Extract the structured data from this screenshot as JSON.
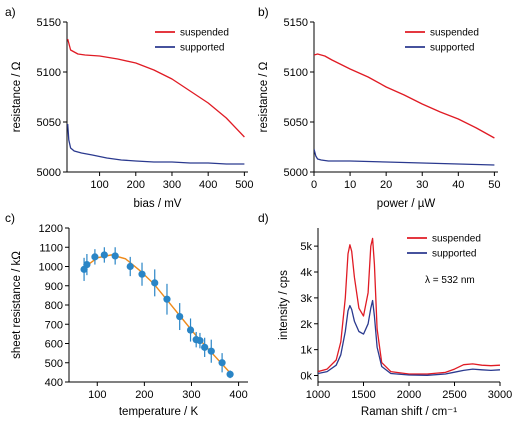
{
  "colors": {
    "suspended": "#e01b24",
    "supported": "#2b3a8f",
    "marker": "#2a85c6",
    "fit": "#ee8a1a"
  },
  "chart_data": [
    {
      "panel": "a)",
      "type": "line",
      "xlabel": "bias / mV",
      "ylabel": "resistance / Ω",
      "xlim": [
        10,
        510
      ],
      "ylim": [
        5000,
        5150
      ],
      "xticks": [
        100,
        200,
        300,
        400,
        500
      ],
      "xtick_labels": [
        "100",
        "200",
        "300",
        "400",
        "500"
      ],
      "yticks": [
        5000,
        5050,
        5100,
        5150
      ],
      "ytick_labels": [
        "5000",
        "5050",
        "5100",
        "5150"
      ],
      "legend": "top-right",
      "series": [
        {
          "name": "suspended",
          "color": "#e01b24",
          "x": [
            12,
            20,
            40,
            60,
            100,
            150,
            200,
            250,
            300,
            350,
            400,
            450,
            500
          ],
          "y": [
            5133,
            5122,
            5118,
            5117,
            5116,
            5113,
            5109,
            5102,
            5093,
            5081,
            5069,
            5054,
            5035
          ]
        },
        {
          "name": "supported",
          "color": "#2b3a8f",
          "x": [
            12,
            15,
            20,
            30,
            50,
            80,
            120,
            160,
            200,
            250,
            300,
            350,
            400,
            450,
            500
          ],
          "y": [
            5048,
            5032,
            5024,
            5021,
            5019,
            5017,
            5014,
            5012,
            5011,
            5010,
            5010,
            5009,
            5009,
            5008,
            5008
          ]
        }
      ]
    },
    {
      "panel": "b)",
      "type": "line",
      "xlabel": "power /  µW",
      "ylabel": "resistance / Ω",
      "xlim": [
        0,
        51
      ],
      "ylim": [
        5000,
        5150
      ],
      "xticks": [
        0,
        10,
        20,
        30,
        40,
        50
      ],
      "xtick_labels": [
        "0",
        "10",
        "20",
        "30",
        "40",
        "50"
      ],
      "yticks": [
        5000,
        5050,
        5100,
        5150
      ],
      "ytick_labels": [
        "5000",
        "5050",
        "5100",
        "5150"
      ],
      "legend": "top-right",
      "series": [
        {
          "name": "suspended",
          "color": "#e01b24",
          "x": [
            0,
            1,
            3,
            5,
            10,
            15,
            20,
            25,
            30,
            35,
            40,
            45,
            50
          ],
          "y": [
            5117,
            5118,
            5116,
            5112,
            5103,
            5095,
            5085,
            5077,
            5068,
            5060,
            5053,
            5044,
            5034
          ]
        },
        {
          "name": "supported",
          "color": "#2b3a8f",
          "x": [
            0,
            0.5,
            1,
            2,
            4,
            10,
            20,
            30,
            40,
            50
          ],
          "y": [
            5023,
            5016,
            5013,
            5012,
            5011,
            5011,
            5010,
            5009,
            5008,
            5007
          ]
        }
      ]
    },
    {
      "panel": "c)",
      "type": "scatter",
      "xlabel": "temperature / K",
      "ylabel": "sheet resistance / kΩ",
      "xlim": [
        40,
        420
      ],
      "ylim": [
        400,
        1200
      ],
      "xticks": [
        100,
        200,
        300,
        400
      ],
      "xtick_labels": [
        "100",
        "200",
        "300",
        "400"
      ],
      "yticks": [
        400,
        500,
        600,
        700,
        800,
        900,
        1000,
        1100,
        1200
      ],
      "ytick_labels": [
        "400",
        "500",
        "600",
        "700",
        "800",
        "900",
        "1000",
        "1100",
        "1200"
      ],
      "points": {
        "x": [
          72,
          78,
          95,
          115,
          138,
          170,
          195,
          222,
          248,
          275,
          298,
          310,
          318,
          328,
          342,
          365,
          382
        ],
        "y": [
          985,
          1010,
          1050,
          1060,
          1055,
          1000,
          960,
          915,
          830,
          740,
          670,
          620,
          615,
          580,
          560,
          500,
          440
        ],
        "err": [
          60,
          55,
          40,
          40,
          45,
          50,
          60,
          70,
          80,
          70,
          60,
          40,
          40,
          50,
          60,
          50,
          20
        ]
      },
      "fit": {
        "x": [
          70,
          100,
          130,
          160,
          190,
          220,
          250,
          280,
          310,
          340,
          370,
          385
        ],
        "y": [
          990,
          1045,
          1060,
          1040,
          980,
          910,
          820,
          730,
          640,
          560,
          480,
          440
        ]
      }
    },
    {
      "panel": "d)",
      "type": "line",
      "xlabel": "Raman shift / cm⁻¹",
      "ylabel": "intensity / cps",
      "xlim": [
        1000,
        3000
      ],
      "ylim": [
        -250,
        5700
      ],
      "xticks": [
        1000,
        1500,
        2000,
        2500,
        3000
      ],
      "xtick_labels": [
        "1000",
        "1500",
        "2000",
        "2500",
        "3000"
      ],
      "yticks": [
        0,
        1000,
        2000,
        3000,
        4000,
        5000
      ],
      "ytick_labels": [
        "0k",
        "1k",
        "2k",
        "3k",
        "4k",
        "5k"
      ],
      "legend": "top-right",
      "annotation": "λ = 532 nm",
      "series": [
        {
          "name": "suspended",
          "color": "#e01b24",
          "x": [
            1000,
            1100,
            1200,
            1250,
            1300,
            1330,
            1350,
            1370,
            1400,
            1450,
            1500,
            1550,
            1580,
            1600,
            1620,
            1650,
            1700,
            1800,
            2000,
            2200,
            2400,
            2500,
            2600,
            2700,
            2800,
            2900,
            3000
          ],
          "y": [
            150,
            250,
            600,
            1300,
            3000,
            4700,
            5050,
            4800,
            3800,
            2600,
            2300,
            3200,
            5000,
            5300,
            4300,
            1800,
            500,
            150,
            60,
            60,
            120,
            250,
            420,
            450,
            400,
            380,
            400
          ]
        },
        {
          "name": "supported",
          "color": "#2b3a8f",
          "x": [
            1000,
            1100,
            1200,
            1250,
            1300,
            1330,
            1350,
            1370,
            1400,
            1450,
            1500,
            1550,
            1580,
            1600,
            1620,
            1650,
            1700,
            1800,
            2000,
            2200,
            2400,
            2500,
            2600,
            2700,
            2800,
            2900,
            3000
          ],
          "y": [
            80,
            150,
            400,
            800,
            1700,
            2500,
            2700,
            2550,
            2100,
            1700,
            1600,
            2000,
            2600,
            2900,
            2300,
            1100,
            350,
            80,
            20,
            10,
            60,
            130,
            200,
            250,
            220,
            200,
            220
          ]
        }
      ]
    }
  ]
}
